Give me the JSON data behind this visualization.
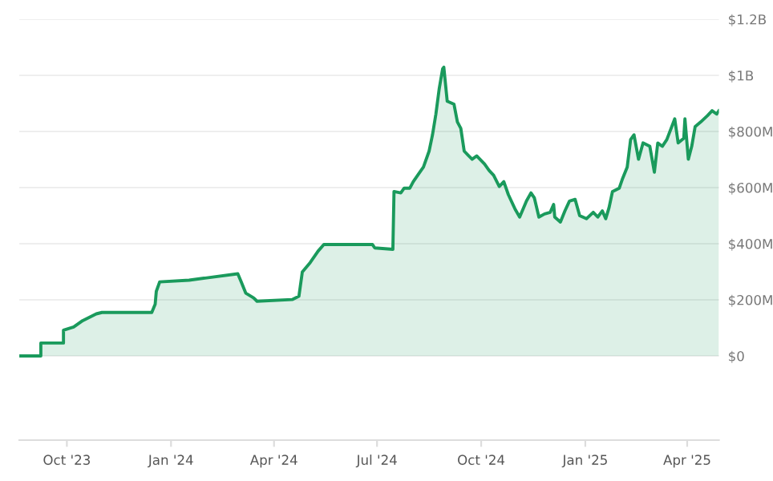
{
  "chart_data": {
    "type": "area",
    "x": [
      "2023-08-20",
      "2023-09-08",
      "2023-09-08",
      "2023-09-28",
      "2023-09-28",
      "2023-10-07",
      "2023-10-15",
      "2023-10-27",
      "2023-11-01",
      "2023-12-15",
      "2023-12-18",
      "2023-12-19",
      "2023-12-22",
      "2024-01-17",
      "2024-02-29",
      "2024-03-03",
      "2024-03-07",
      "2024-03-14",
      "2024-03-17",
      "2024-04-17",
      "2024-04-23",
      "2024-04-26",
      "2024-05-03",
      "2024-05-10",
      "2024-05-15",
      "2024-06-07",
      "2024-06-27",
      "2024-06-29",
      "2024-07-15",
      "2024-07-16",
      "2024-07-22",
      "2024-07-25",
      "2024-07-30",
      "2024-08-02",
      "2024-08-08",
      "2024-08-11",
      "2024-08-16",
      "2024-08-19",
      "2024-08-22",
      "2024-08-25",
      "2024-08-28",
      "2024-08-29",
      "2024-09-01",
      "2024-09-07",
      "2024-09-10",
      "2024-09-13",
      "2024-09-16",
      "2024-09-20",
      "2024-09-23",
      "2024-09-27",
      "2024-10-04",
      "2024-10-08",
      "2024-10-12",
      "2024-10-17",
      "2024-10-21",
      "2024-10-25",
      "2024-10-31",
      "2024-11-04",
      "2024-11-10",
      "2024-11-14",
      "2024-11-17",
      "2024-11-21",
      "2024-11-26",
      "2024-12-01",
      "2024-12-04",
      "2024-12-05",
      "2024-12-10",
      "2024-12-14",
      "2024-12-18",
      "2024-12-23",
      "2024-12-27",
      "2025-01-02",
      "2025-01-08",
      "2025-01-12",
      "2025-01-16",
      "2025-01-19",
      "2025-01-22",
      "2025-01-25",
      "2025-01-31",
      "2025-02-03",
      "2025-02-07",
      "2025-02-10",
      "2025-02-13",
      "2025-02-17",
      "2025-02-21",
      "2025-02-27",
      "2025-03-03",
      "2025-03-06",
      "2025-03-10",
      "2025-03-14",
      "2025-03-21",
      "2025-03-24",
      "2025-03-29",
      "2025-03-30",
      "2025-04-02",
      "2025-04-05",
      "2025-04-08",
      "2025-04-13",
      "2025-04-19",
      "2025-04-23",
      "2025-04-27",
      "2025-04-29"
    ],
    "series": [
      {
        "color": "#1a9a5c",
        "values": [
          0,
          0,
          46000000,
          46000000,
          92000000,
          103000000,
          126000000,
          150000000,
          155000000,
          155000000,
          184000000,
          230000000,
          264000000,
          270000000,
          293000000,
          264000000,
          224000000,
          207000000,
          195000000,
          201000000,
          213000000,
          299000000,
          333000000,
          374000000,
          397000000,
          397000000,
          397000000,
          385000000,
          380000000,
          586000000,
          581000000,
          598000000,
          598000000,
          621000000,
          656000000,
          673000000,
          730000000,
          788000000,
          862000000,
          954000000,
          1024000000,
          1029000000,
          908000000,
          897000000,
          834000000,
          811000000,
          730000000,
          713000000,
          701000000,
          713000000,
          684000000,
          661000000,
          644000000,
          604000000,
          621000000,
          575000000,
          523000000,
          495000000,
          552000000,
          581000000,
          563000000,
          495000000,
          506000000,
          512000000,
          540000000,
          495000000,
          477000000,
          517000000,
          552000000,
          558000000,
          500000000,
          489000000,
          512000000,
          495000000,
          517000000,
          489000000,
          529000000,
          586000000,
          598000000,
          633000000,
          673000000,
          771000000,
          788000000,
          701000000,
          759000000,
          747000000,
          655000000,
          759000000,
          747000000,
          771000000,
          845000000,
          759000000,
          776000000,
          845000000,
          701000000,
          747000000,
          817000000,
          834000000,
          857000000,
          874000000,
          862000000,
          874000000
        ]
      }
    ],
    "xlim": [
      "2023-08-20",
      "2025-04-29"
    ],
    "xticks": [
      {
        "value": "2023-10-01",
        "label": "Oct '23"
      },
      {
        "value": "2024-01-01",
        "label": "Jan '24"
      },
      {
        "value": "2024-04-01",
        "label": "Apr '24"
      },
      {
        "value": "2024-07-01",
        "label": "Jul '24"
      },
      {
        "value": "2024-10-01",
        "label": "Oct '24"
      },
      {
        "value": "2025-01-01",
        "label": "Jan '25"
      },
      {
        "value": "2025-04-01",
        "label": "Apr '25"
      }
    ],
    "ylim": [
      -300000000,
      1200000000
    ],
    "yticks": [
      {
        "value": 0,
        "label": "$0"
      },
      {
        "value": 200000000,
        "label": "$200M"
      },
      {
        "value": 400000000,
        "label": "$400M"
      },
      {
        "value": 600000000,
        "label": "$600M"
      },
      {
        "value": 800000000,
        "label": "$800M"
      },
      {
        "value": 1000000000,
        "label": "$1B"
      },
      {
        "value": 1200000000,
        "label": "$1.2B"
      }
    ],
    "grid": "y",
    "legend": false
  }
}
